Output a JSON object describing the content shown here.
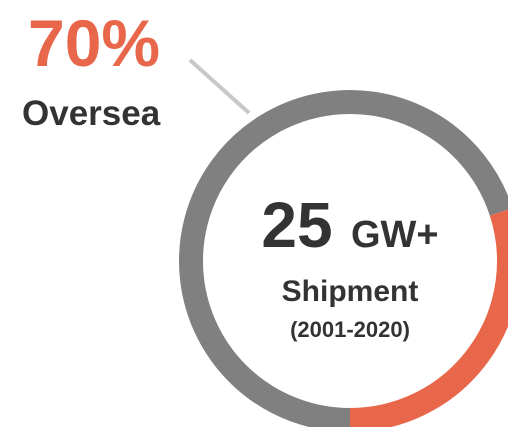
{
  "chart_data": {
    "type": "donut",
    "categories": [
      "Oversea",
      null
    ],
    "values": [
      70,
      30
    ],
    "value_labels": [
      "70%",
      null
    ],
    "colors": [
      "#808080",
      "#e8664a"
    ],
    "label_color": "#e8664a",
    "center_value": "25",
    "center_unit": "GW+",
    "center_title": "Shipment",
    "center_subtitle": "(2001-2020)"
  }
}
